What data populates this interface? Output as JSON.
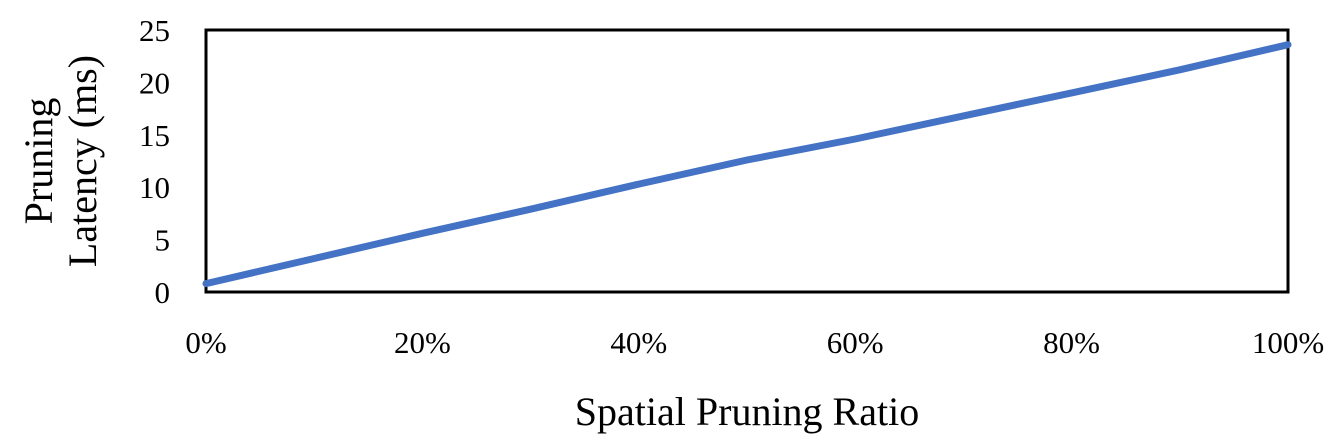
{
  "chart_data": {
    "type": "line",
    "title": "",
    "xlabel": "Spatial Pruning Ratio",
    "ylabel_lines": [
      "Pruning",
      "Latency (ms)"
    ],
    "ylabel": "Pruning Latency (ms)",
    "x_ticks": [
      "0%",
      "20%",
      "40%",
      "60%",
      "80%",
      "100%"
    ],
    "y_ticks": [
      "0",
      "5",
      "10",
      "15",
      "20",
      "25"
    ],
    "xlim": [
      0,
      100
    ],
    "ylim": [
      0,
      25
    ],
    "grid": false,
    "legend": null,
    "series": [
      {
        "name": "Pruning Latency",
        "color": "#4472C4",
        "x": [
          0,
          10,
          20,
          30,
          40,
          50,
          60,
          70,
          80,
          90,
          100
        ],
        "values": [
          0.8,
          3.2,
          5.6,
          7.9,
          10.3,
          12.6,
          14.6,
          16.8,
          19.0,
          21.2,
          23.6
        ]
      }
    ]
  }
}
